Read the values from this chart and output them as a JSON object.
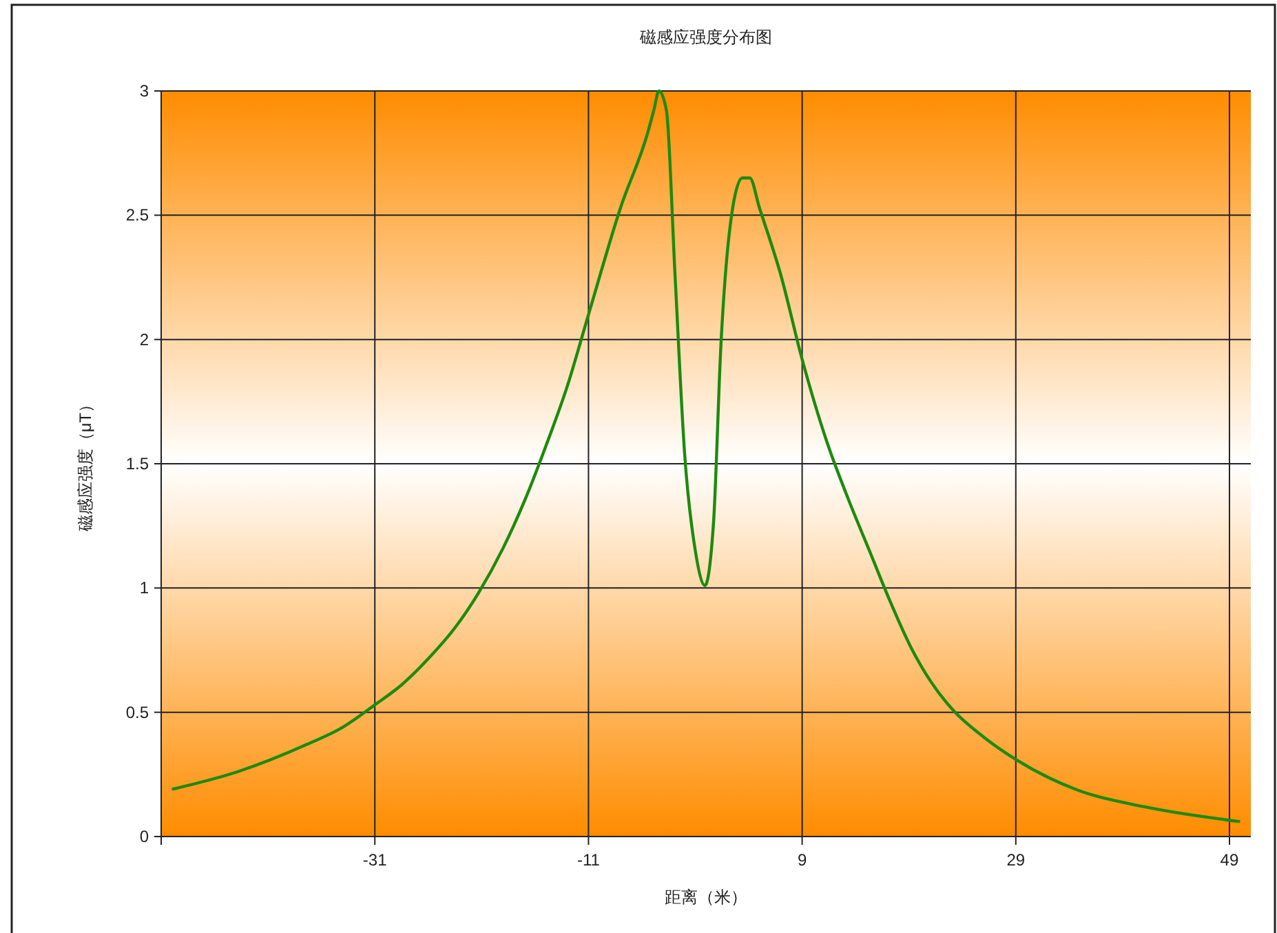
{
  "chart_data": {
    "type": "line",
    "title": "磁感应强度分布图",
    "xlabel": "距离（米）",
    "ylabel": "磁感应强度（μT）",
    "x": [
      -50,
      -43.9,
      -37.4,
      -34,
      -31,
      -28.5,
      -25.9,
      -23.5,
      -21.3,
      -19,
      -16.8,
      -15,
      -13,
      -11,
      -8,
      -5.4,
      -4.9,
      -4.4,
      -3.7,
      -2.9,
      -2,
      -1,
      -0.1,
      0.7,
      1.4,
      2.5,
      3.4,
      4.1,
      5,
      7,
      9,
      11.3,
      13.3,
      15.3,
      17.2,
      19.2,
      21.1,
      23.1,
      26,
      29,
      34.6,
      41,
      50
    ],
    "series": [
      {
        "color": "#1e8a0e",
        "values": [
          0.19,
          0.26,
          0.37,
          0.44,
          0.53,
          0.61,
          0.72,
          0.84,
          0.98,
          1.16,
          1.37,
          1.57,
          1.81,
          2.1,
          2.53,
          2.84,
          2.92,
          3.0,
          2.92,
          2.26,
          1.54,
          1.15,
          1.01,
          1.26,
          1.98,
          2.53,
          2.65,
          2.65,
          2.53,
          2.26,
          1.92,
          1.59,
          1.36,
          1.15,
          0.95,
          0.76,
          0.62,
          0.51,
          0.4,
          0.31,
          0.19,
          0.12,
          0.06
        ]
      }
    ],
    "xlim": [
      -51,
      51
    ],
    "xticks": [
      {
        "value": -51,
        "label": null
      },
      -31,
      -11,
      9,
      29,
      49
    ],
    "ylim": [
      0,
      3
    ],
    "yticks": [
      0,
      0.5,
      1,
      1.5,
      2,
      2.5,
      3
    ],
    "grid": true,
    "marker": "none",
    "line_style": "solid"
  }
}
